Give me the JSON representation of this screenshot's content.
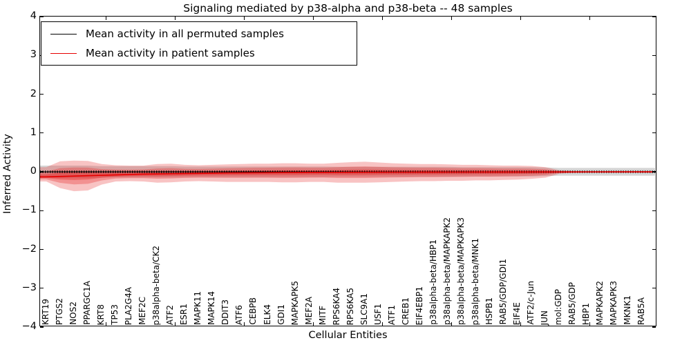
{
  "title": "Signaling mediated by p38-alpha and p38-beta -- 48 samples",
  "axes": {
    "y_label": "Inferred Activity",
    "x_label": "Cellular Entities",
    "y_tick_labels": [
      "4",
      "3",
      "2",
      "1",
      "0",
      "−1",
      "−2",
      "−3",
      "−4"
    ],
    "y_tick_values": [
      4,
      3,
      2,
      1,
      0,
      -1,
      -2,
      -3,
      -4
    ]
  },
  "legend": {
    "position": "upper left",
    "items": [
      {
        "label": "Mean activity in all permuted samples",
        "color": "#000000"
      },
      {
        "label": "Mean activity in patient samples",
        "color": "#e60000"
      }
    ]
  },
  "chart_data": {
    "type": "line",
    "title": "Signaling mediated by p38-alpha and p38-beta -- 48 samples",
    "xlabel": "Cellular Entities",
    "ylabel": "Inferred Activity",
    "ylim": [
      -4,
      4
    ],
    "grid": false,
    "legend_position": "upper left",
    "categories": [
      "KRT19",
      "PTGS2",
      "NOS2",
      "PPARGC1A",
      "KRT8",
      "TP53",
      "PLA2G4A",
      "MEF2C",
      "p38alpha-beta/CK2",
      "ATF2",
      "ESR1",
      "MAPK11",
      "MAPK14",
      "DDIT3",
      "ATF6",
      "CEBPB",
      "ELK4",
      "GDI1",
      "MAPKAPK5",
      "MEF2A",
      "MITF",
      "RPS6KA4",
      "RPS6KA5",
      "SLC9A1",
      "USF1",
      "ATF1",
      "CREB1",
      "EIF4EBP1",
      "p38alpha-beta/HBP1",
      "p38alpha-beta/MAPKAPK2",
      "p38alpha-beta/MAPKAPK3",
      "p38alpha-beta/MNK1",
      "HSPB1",
      "RAB5/GDP/GDI1",
      "EIF4E",
      "ATF2/c-Jun",
      "JUN",
      "mol:GDP",
      "RAB5/GDP",
      "HBP1",
      "MAPKAPK2",
      "MAPKAPK3",
      "MKNK1",
      "RAB5A"
    ],
    "series": [
      {
        "name": "Mean activity in all permuted samples",
        "kind": "line",
        "color": "#000000",
        "values": [
          0,
          0,
          0,
          0,
          0,
          0,
          0,
          0,
          0,
          0,
          0,
          0,
          0,
          0,
          0,
          0,
          0,
          0,
          0,
          0,
          0,
          0,
          0,
          0,
          0,
          0,
          0,
          0,
          0,
          0,
          0,
          0,
          0,
          0,
          0,
          0,
          0,
          0,
          0,
          0,
          0,
          0,
          0,
          0
        ]
      },
      {
        "name": "Mean activity in patient samples",
        "kind": "line",
        "color": "#e60000",
        "values": [
          -0.13,
          -0.12,
          -0.11,
          -0.1,
          -0.09,
          -0.08,
          -0.07,
          -0.06,
          -0.055,
          -0.05,
          -0.045,
          -0.04,
          -0.035,
          -0.03,
          -0.028,
          -0.025,
          -0.022,
          -0.02,
          -0.018,
          -0.016,
          -0.015,
          -0.014,
          -0.013,
          -0.012,
          -0.011,
          -0.01,
          -0.01,
          -0.009,
          -0.009,
          -0.008,
          -0.008,
          -0.007,
          -0.007,
          -0.006,
          -0.006,
          -0.005,
          -0.005,
          -0.004,
          -0.004,
          -0.003,
          -0.003,
          -0.002,
          -0.002,
          -0.002
        ]
      },
      {
        "name": "Permuted samples spread",
        "kind": "band",
        "color": "rgba(125,125,125,0.32)",
        "upper": [
          0.16,
          0.16,
          0.16,
          0.16,
          0.145,
          0.145,
          0.145,
          0.145,
          0.145,
          0.145,
          0.135,
          0.135,
          0.135,
          0.135,
          0.135,
          0.135,
          0.135,
          0.135,
          0.135,
          0.135,
          0.135,
          0.13,
          0.13,
          0.13,
          0.13,
          0.13,
          0.13,
          0.13,
          0.13,
          0.13,
          0.12,
          0.12,
          0.12,
          0.12,
          0.12,
          0.12,
          0.11,
          0.1,
          0.1,
          0.1,
          0.1,
          0.1,
          0.1,
          0.1
        ],
        "lower": [
          -0.16,
          -0.16,
          -0.16,
          -0.16,
          -0.145,
          -0.145,
          -0.145,
          -0.145,
          -0.145,
          -0.145,
          -0.135,
          -0.135,
          -0.135,
          -0.135,
          -0.135,
          -0.135,
          -0.135,
          -0.135,
          -0.135,
          -0.135,
          -0.135,
          -0.13,
          -0.13,
          -0.13,
          -0.13,
          -0.13,
          -0.13,
          -0.13,
          -0.13,
          -0.13,
          -0.12,
          -0.12,
          -0.12,
          -0.12,
          -0.12,
          -0.12,
          -0.11,
          -0.1,
          -0.1,
          -0.1,
          -0.1,
          -0.1,
          -0.1,
          -0.1
        ]
      },
      {
        "name": "Patient samples spread",
        "kind": "band",
        "color": "rgba(232,55,55,0.30)",
        "upper": [
          0.12,
          0.27,
          0.29,
          0.28,
          0.2,
          0.17,
          0.16,
          0.16,
          0.2,
          0.21,
          0.18,
          0.17,
          0.18,
          0.19,
          0.2,
          0.21,
          0.21,
          0.22,
          0.22,
          0.21,
          0.21,
          0.23,
          0.25,
          0.26,
          0.24,
          0.22,
          0.21,
          0.2,
          0.2,
          0.19,
          0.18,
          0.18,
          0.17,
          0.16,
          0.16,
          0.15,
          0.12,
          0.04,
          0.02,
          0.015,
          0.015,
          0.015,
          0.015,
          0.015
        ],
        "lower": [
          -0.25,
          -0.42,
          -0.5,
          -0.48,
          -0.33,
          -0.25,
          -0.24,
          -0.25,
          -0.28,
          -0.27,
          -0.25,
          -0.24,
          -0.25,
          -0.26,
          -0.26,
          -0.26,
          -0.26,
          -0.27,
          -0.27,
          -0.26,
          -0.26,
          -0.28,
          -0.28,
          -0.28,
          -0.27,
          -0.26,
          -0.25,
          -0.24,
          -0.24,
          -0.23,
          -0.23,
          -0.22,
          -0.22,
          -0.21,
          -0.2,
          -0.18,
          -0.15,
          -0.05,
          -0.02,
          -0.015,
          -0.015,
          -0.015,
          -0.015,
          -0.015
        ]
      }
    ]
  }
}
